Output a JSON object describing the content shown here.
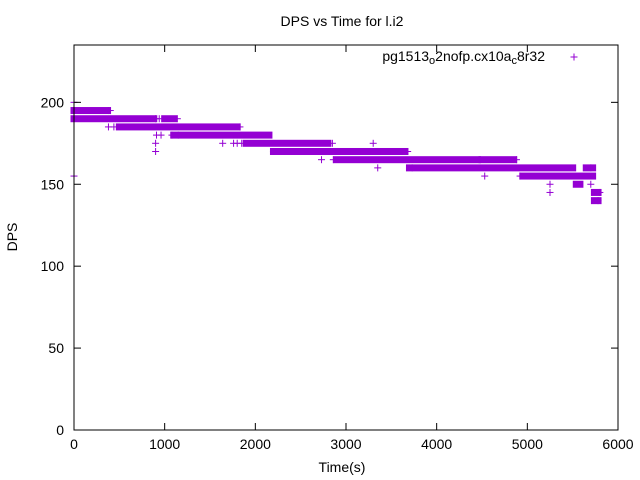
{
  "chart_data": {
    "type": "scatter",
    "title": "DPS vs Time for l.i2",
    "xlabel": "Time(s)",
    "ylabel": "DPS",
    "xlim": [
      0,
      6000
    ],
    "ylim": [
      0,
      235
    ],
    "xticks": [
      0,
      1000,
      2000,
      3000,
      4000,
      5000,
      6000
    ],
    "yticks": [
      0,
      50,
      100,
      150,
      200
    ],
    "grid": false,
    "legend_position": "top-right",
    "marker": "+",
    "color": "#9400d3",
    "series": [
      {
        "legend": {
          "parts": [
            {
              "t": "pg1513",
              "s": "n"
            },
            {
              "t": "o",
              "s": "sub"
            },
            {
              "t": "2nofp.cx10a",
              "s": "n"
            },
            {
              "t": "c",
              "s": "sub"
            },
            {
              "t": "8r32",
              "s": "n"
            }
          ]
        },
        "runs": [
          {
            "x0": 0,
            "x1": 370,
            "y": 195
          },
          {
            "x0": 0,
            "x1": 880,
            "y": 190
          },
          {
            "x0": 1000,
            "x1": 1100,
            "y": 190
          },
          {
            "x0": 500,
            "x1": 1800,
            "y": 185
          },
          {
            "x0": 1100,
            "x1": 2150,
            "y": 180
          },
          {
            "x0": 1900,
            "x1": 2800,
            "y": 175
          },
          {
            "x0": 2200,
            "x1": 3650,
            "y": 170
          },
          {
            "x0": 2900,
            "x1": 4450,
            "y": 165
          },
          {
            "x0": 4500,
            "x1": 4850,
            "y": 165
          },
          {
            "x0": 3700,
            "x1": 5500,
            "y": 160
          },
          {
            "x0": 5650,
            "x1": 5720,
            "y": 160
          },
          {
            "x0": 4950,
            "x1": 5720,
            "y": 155
          },
          {
            "x0": 5540,
            "x1": 5580,
            "y": 150
          },
          {
            "x0": 5740,
            "x1": 5780,
            "y": 145
          },
          {
            "x0": 5740,
            "x1": 5780,
            "y": 140
          }
        ],
        "points": [
          [
            0,
            155
          ],
          [
            0,
            200
          ],
          [
            400,
            195
          ],
          [
            380,
            195
          ],
          [
            380,
            185
          ],
          [
            440,
            185
          ],
          [
            900,
            190
          ],
          [
            940,
            190
          ],
          [
            1140,
            190
          ],
          [
            900,
            175
          ],
          [
            900,
            170
          ],
          [
            910,
            180
          ],
          [
            960,
            180
          ],
          [
            1080,
            180
          ],
          [
            1150,
            180
          ],
          [
            1830,
            185
          ],
          [
            1640,
            175
          ],
          [
            1760,
            175
          ],
          [
            1800,
            175
          ],
          [
            1850,
            175
          ],
          [
            2200,
            170
          ],
          [
            2730,
            165
          ],
          [
            2860,
            165
          ],
          [
            2850,
            175
          ],
          [
            3300,
            175
          ],
          [
            3350,
            160
          ],
          [
            3680,
            170
          ],
          [
            3730,
            160
          ],
          [
            4530,
            155
          ],
          [
            4880,
            165
          ],
          [
            4920,
            155
          ],
          [
            5250,
            150
          ],
          [
            5250,
            145
          ],
          [
            5700,
            150
          ],
          [
            5700,
            160
          ],
          [
            5800,
            145
          ],
          [
            5780,
            140
          ]
        ]
      }
    ]
  }
}
